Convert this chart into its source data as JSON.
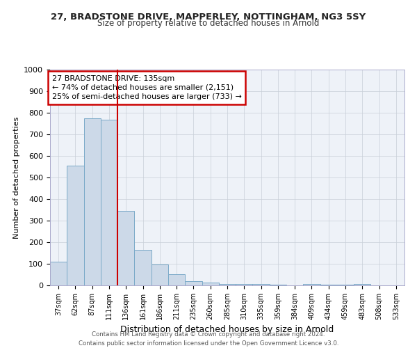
{
  "title1": "27, BRADSTONE DRIVE, MAPPERLEY, NOTTINGHAM, NG3 5SY",
  "title2": "Size of property relative to detached houses in Arnold",
  "xlabel": "Distribution of detached houses by size in Arnold",
  "ylabel": "Number of detached properties",
  "categories": [
    "37sqm",
    "62sqm",
    "87sqm",
    "111sqm",
    "136sqm",
    "161sqm",
    "186sqm",
    "211sqm",
    "235sqm",
    "260sqm",
    "285sqm",
    "310sqm",
    "335sqm",
    "359sqm",
    "384sqm",
    "409sqm",
    "434sqm",
    "459sqm",
    "483sqm",
    "508sqm",
    "533sqm"
  ],
  "values": [
    110,
    555,
    775,
    768,
    345,
    163,
    97,
    53,
    18,
    12,
    8,
    8,
    5,
    3,
    1,
    8,
    3,
    3,
    8,
    1,
    0
  ],
  "bar_color": "#ccd9e8",
  "bar_edge_color": "#7aaac8",
  "red_line_index": 4,
  "annotation_line1": "27 BRADSTONE DRIVE: 135sqm",
  "annotation_line2": "← 74% of detached houses are smaller (2,151)",
  "annotation_line3": "25% of semi-detached houses are larger (733) →",
  "ylim": [
    0,
    1000
  ],
  "yticks": [
    0,
    100,
    200,
    300,
    400,
    500,
    600,
    700,
    800,
    900,
    1000
  ],
  "footer1": "Contains HM Land Registry data © Crown copyright and database right 2024.",
  "footer2": "Contains public sector information licensed under the Open Government Licence v3.0.",
  "axes_bg": "#eef2f8"
}
